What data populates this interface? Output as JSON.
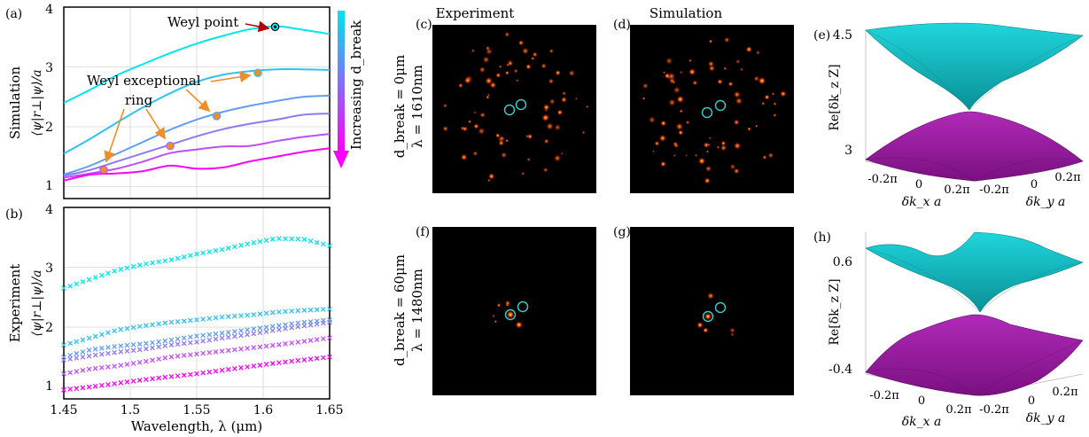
{
  "panel_labels": {
    "a": "(a)",
    "b": "(b)",
    "c": "(c)",
    "d": "(d)",
    "e": "(e)",
    "f": "(f)",
    "g": "(g)",
    "h": "(h)"
  },
  "column_titles": {
    "experiment": "Experiment",
    "simulation": "Simulation"
  },
  "row_params": {
    "top_d": "d_break = 0μm",
    "top_lambda": "λ = 1610nm",
    "bottom_d": "d_break = 60μm",
    "bottom_lambda": "λ = 1480nm"
  },
  "colorbar_label": "Increasing d_break",
  "annotations": {
    "weyl_point": "Weyl point",
    "weyl_ring_1": "Weyl exceptional",
    "weyl_ring_2": "ring"
  },
  "surface_axes": {
    "e": {
      "zlabel": "Re[δk_z Z]",
      "zticks": [
        "4.5",
        "3"
      ],
      "xticks": [
        "-0.2π",
        "0",
        "0.2π"
      ],
      "yticks": [
        "-0.2π",
        "0",
        "0.2π"
      ],
      "xlabel": "δk_x a",
      "ylabel": "δk_y a"
    },
    "h": {
      "zlabel": "Re[δk_z Z]",
      "zticks": [
        "0.6",
        "-0.4"
      ],
      "xticks": [
        "-0.2π",
        "0",
        "0.2π"
      ],
      "yticks": [
        "-0.2π",
        "0",
        "0.2π"
      ],
      "xlabel": "δk_x a",
      "ylabel": "δk_y a"
    }
  },
  "colors": {
    "cyan": "#00e5ee",
    "magenta": "#ff00ff",
    "orange": "#f28c28",
    "dark_red": "#b0000b"
  },
  "chart_data": [
    {
      "type": "line",
      "panel": "(a)",
      "ylabel_row": "Simulation",
      "ylabel": "⟨ψ|r⊥|ψ⟩/a",
      "xlim": [
        1.45,
        1.65
      ],
      "ylim": [
        0.8,
        4
      ],
      "yticks": [
        "1",
        "2",
        "3",
        "4"
      ],
      "grid": true,
      "x": [
        1.45,
        1.47,
        1.49,
        1.51,
        1.53,
        1.55,
        1.57,
        1.59,
        1.61,
        1.63,
        1.65
      ],
      "series": [
        {
          "color": "#00e5ee",
          "values": [
            2.4,
            2.62,
            2.86,
            3.05,
            3.23,
            3.39,
            3.52,
            3.63,
            3.68,
            3.62,
            3.55
          ]
        },
        {
          "color": "#30c2ef",
          "values": [
            1.55,
            1.8,
            2.07,
            2.33,
            2.56,
            2.75,
            2.87,
            2.93,
            2.96,
            2.96,
            2.95
          ]
        },
        {
          "color": "#5f9ef1",
          "values": [
            1.2,
            1.35,
            1.55,
            1.75,
            1.95,
            2.12,
            2.25,
            2.35,
            2.43,
            2.5,
            2.52
          ]
        },
        {
          "color": "#8f78f4",
          "values": [
            1.18,
            1.28,
            1.42,
            1.56,
            1.7,
            1.84,
            1.96,
            2.05,
            2.12,
            2.2,
            2.22
          ]
        },
        {
          "color": "#c04ef8",
          "values": [
            1.15,
            1.22,
            1.3,
            1.42,
            1.56,
            1.62,
            1.67,
            1.68,
            1.76,
            1.83,
            1.88
          ]
        },
        {
          "color": "#ff00ff",
          "values": [
            1.1,
            1.2,
            1.22,
            1.26,
            1.35,
            1.3,
            1.32,
            1.42,
            1.5,
            1.58,
            1.64
          ]
        }
      ],
      "markers": [
        {
          "x": 1.609,
          "y": 3.67,
          "color": "#00e5ee",
          "label": "Weyl point"
        },
        {
          "x": 1.596,
          "y": 2.9,
          "color": "#30c2ef"
        },
        {
          "x": 1.565,
          "y": 2.18,
          "color": "#5f9ef1"
        },
        {
          "x": 1.53,
          "y": 1.68,
          "color": "#8f78f4"
        },
        {
          "x": 1.48,
          "y": 1.28,
          "color": "#c04ef8"
        }
      ]
    },
    {
      "type": "scatter",
      "panel": "(b)",
      "ylabel_row": "Experiment",
      "ylabel": "⟨ψ|r⊥|ψ⟩/a",
      "xlabel": "Wavelength, λ (μm)",
      "xlim": [
        1.45,
        1.65
      ],
      "ylim": [
        0.8,
        4
      ],
      "xticks": [
        "1.45",
        "1.5",
        "1.55",
        "1.6",
        "1.65"
      ],
      "yticks": [
        "1",
        "2",
        "3",
        "4"
      ],
      "grid": true,
      "x": [
        1.45,
        1.47,
        1.49,
        1.51,
        1.53,
        1.55,
        1.57,
        1.59,
        1.61,
        1.63,
        1.65
      ],
      "series": [
        {
          "color": "#00e5ee",
          "values": [
            2.65,
            2.8,
            2.95,
            3.05,
            3.12,
            3.22,
            3.3,
            3.4,
            3.48,
            3.47,
            3.36
          ]
        },
        {
          "color": "#30c2ef",
          "values": [
            1.7,
            1.82,
            1.95,
            2.02,
            2.08,
            2.12,
            2.17,
            2.2,
            2.25,
            2.28,
            2.3
          ]
        },
        {
          "color": "#5f9ef1",
          "values": [
            1.5,
            1.62,
            1.68,
            1.72,
            1.78,
            1.85,
            1.9,
            1.96,
            2.02,
            2.08,
            2.12
          ]
        },
        {
          "color": "#8f78f4",
          "values": [
            1.45,
            1.52,
            1.58,
            1.63,
            1.7,
            1.75,
            1.82,
            1.88,
            1.95,
            2.02,
            2.08
          ]
        },
        {
          "color": "#c04ef8",
          "values": [
            1.22,
            1.3,
            1.35,
            1.42,
            1.5,
            1.55,
            1.6,
            1.65,
            1.7,
            1.76,
            1.82
          ]
        },
        {
          "color": "#ff00ff",
          "values": [
            0.95,
            1.0,
            1.06,
            1.12,
            1.17,
            1.22,
            1.28,
            1.34,
            1.4,
            1.45,
            1.5
          ]
        }
      ]
    }
  ]
}
